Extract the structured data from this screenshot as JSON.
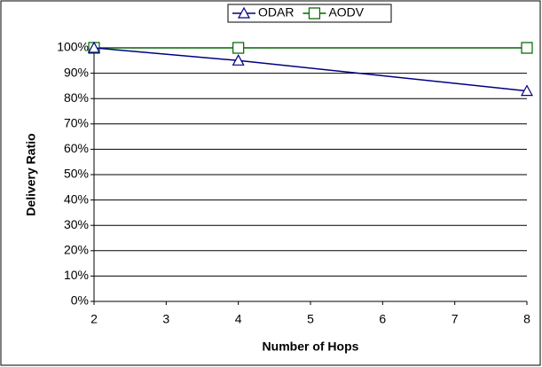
{
  "chart_data": {
    "type": "line",
    "x_label": "Number of Hops",
    "y_label": "Delivery Ratio",
    "x": [
      2,
      4,
      8
    ],
    "series": [
      {
        "name": "ODAR",
        "color": "#000080",
        "marker": "triangle",
        "values": [
          100,
          95,
          83
        ]
      },
      {
        "name": "AODV",
        "color": "#006600",
        "marker": "square",
        "values": [
          100,
          100,
          100
        ]
      }
    ],
    "xlim": [
      2,
      8
    ],
    "xticks": [
      2,
      3,
      4,
      5,
      6,
      7,
      8
    ],
    "ylim": [
      0,
      100
    ],
    "yticks": [
      {
        "value": 0,
        "label": "0%"
      },
      {
        "value": 10,
        "label": "10%"
      },
      {
        "value": 20,
        "label": "20%"
      },
      {
        "value": 30,
        "label": "30%"
      },
      {
        "value": 40,
        "label": "40%"
      },
      {
        "value": 50,
        "label": "50%"
      },
      {
        "value": 60,
        "label": "60%"
      },
      {
        "value": 70,
        "label": "70%"
      },
      {
        "value": 80,
        "label": "80%"
      },
      {
        "value": 90,
        "label": "90%"
      },
      {
        "value": 100,
        "label": "100%"
      }
    ],
    "grid": true,
    "legend": "top"
  }
}
